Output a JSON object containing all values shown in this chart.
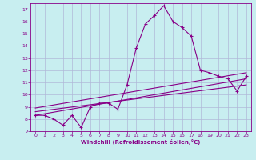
{
  "xlabel": "Windchill (Refroidissement éolien,°C)",
  "bg_color": "#c8eef0",
  "grid_color": "#b0b8d8",
  "line_color": "#880088",
  "xlim": [
    -0.5,
    23.5
  ],
  "ylim": [
    7,
    17.5
  ],
  "xticks": [
    0,
    1,
    2,
    3,
    4,
    5,
    6,
    7,
    8,
    9,
    10,
    11,
    12,
    13,
    14,
    15,
    16,
    17,
    18,
    19,
    20,
    21,
    22,
    23
  ],
  "yticks": [
    7,
    8,
    9,
    10,
    11,
    12,
    13,
    14,
    15,
    16,
    17
  ],
  "main_x": [
    0,
    1,
    2,
    3,
    4,
    5,
    6,
    7,
    8,
    9,
    10,
    11,
    12,
    13,
    14,
    15,
    16,
    17,
    18,
    19,
    20,
    21,
    22,
    23
  ],
  "main_y": [
    8.3,
    8.3,
    8.0,
    7.5,
    8.3,
    7.3,
    9.0,
    9.3,
    9.3,
    8.8,
    10.8,
    13.8,
    15.8,
    16.5,
    17.3,
    16.0,
    15.5,
    14.8,
    12.0,
    11.8,
    11.5,
    11.3,
    10.3,
    11.5
  ],
  "line1_x": [
    0,
    23
  ],
  "line1_y": [
    8.3,
    11.3
  ],
  "line2_x": [
    0,
    23
  ],
  "line2_y": [
    8.6,
    10.8
  ],
  "line3_x": [
    0,
    23
  ],
  "line3_y": [
    8.9,
    11.8
  ]
}
